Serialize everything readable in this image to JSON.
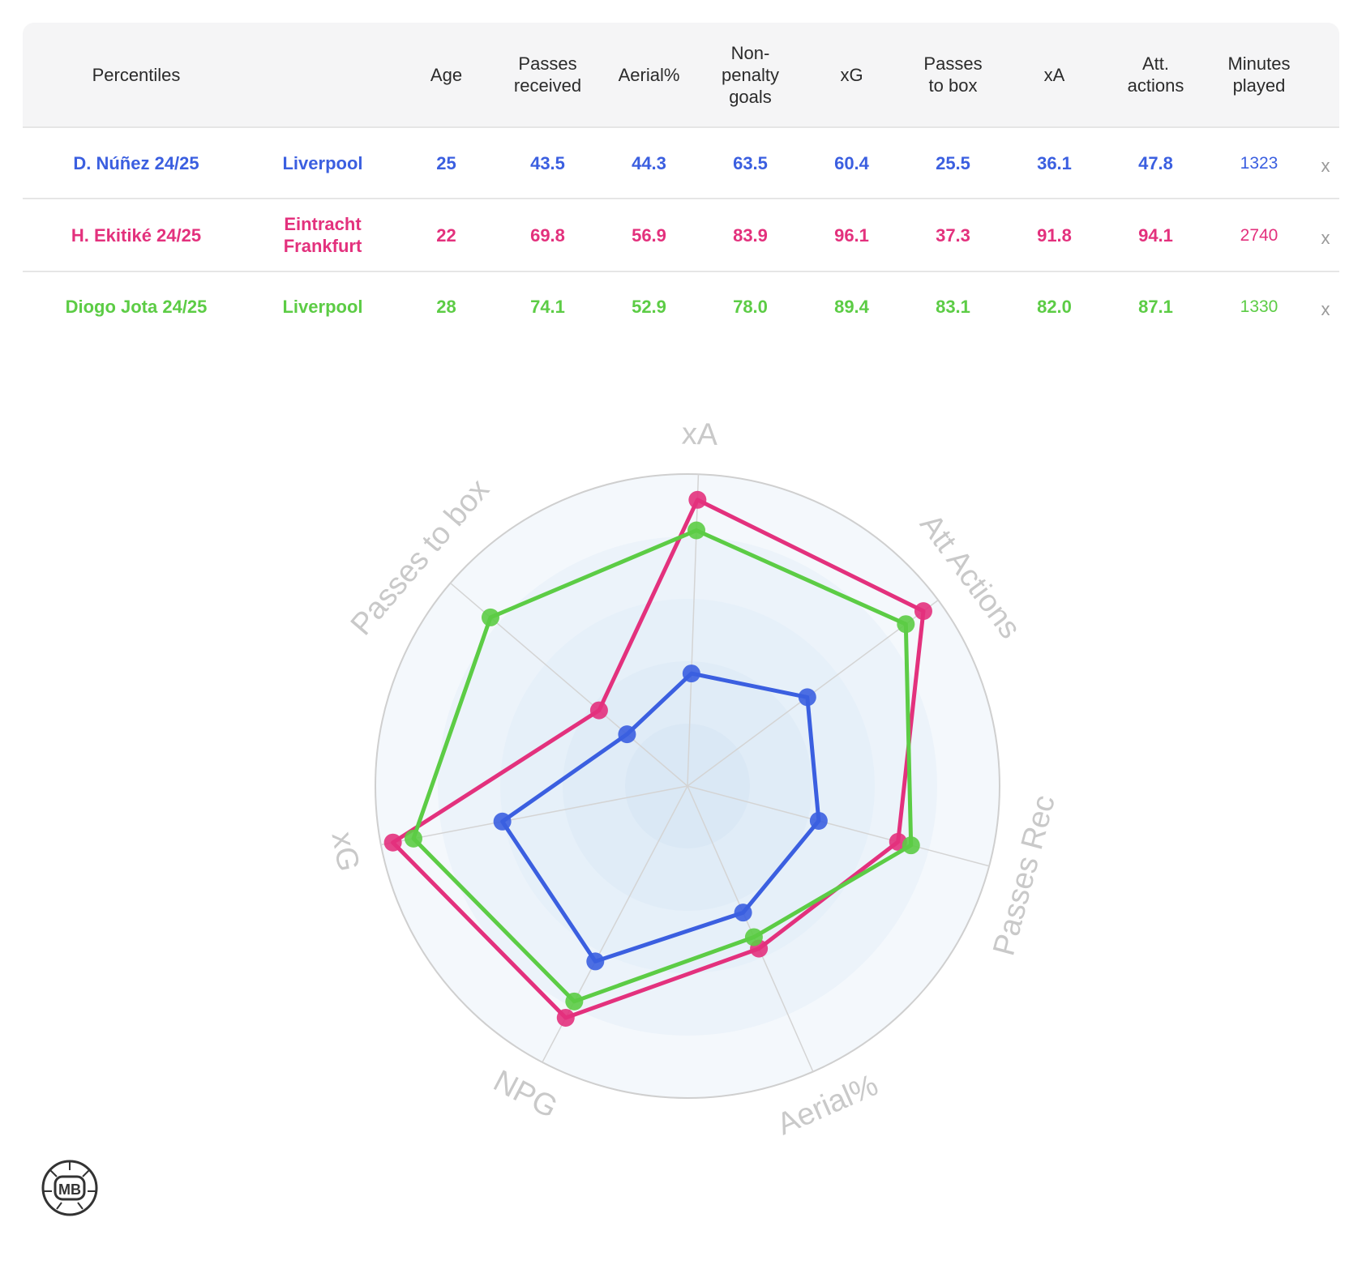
{
  "table": {
    "headers": [
      "Percentiles",
      "",
      "Age",
      "Passes received",
      "Aerial%",
      "Non-penalty goals",
      "xG",
      "Passes to box",
      "xA",
      "Att. actions",
      "Minutes played"
    ],
    "header_lines": {
      "passes_received": [
        "Passes",
        "received"
      ],
      "non_penalty_goals": [
        "Non-",
        "penalty",
        "goals"
      ],
      "passes_to_box": [
        "Passes",
        "to box"
      ],
      "att_actions": [
        "Att.",
        "actions"
      ],
      "minutes_played": [
        "Minutes",
        "played"
      ]
    },
    "rows": [
      {
        "player": "D. Núñez 24/25",
        "team_lines": [
          "Liverpool"
        ],
        "age": "25",
        "passes_received": "43.5",
        "aerial": "44.3",
        "npg": "63.5",
        "xg": "60.4",
        "passes_to_box": "25.5",
        "xa": "36.1",
        "att_actions": "47.8",
        "minutes": "1323",
        "remove": "x",
        "color": "#3b5fe0"
      },
      {
        "player": "H. Ekitiké 24/25",
        "team_lines": [
          "Eintracht",
          "Frankfurt"
        ],
        "age": "22",
        "passes_received": "69.8",
        "aerial": "56.9",
        "npg": "83.9",
        "xg": "96.1",
        "passes_to_box": "37.3",
        "xa": "91.8",
        "att_actions": "94.1",
        "minutes": "2740",
        "remove": "x",
        "color": "#e3317d"
      },
      {
        "player": "Diogo Jota 24/25",
        "team_lines": [
          "Liverpool"
        ],
        "age": "28",
        "passes_received": "74.1",
        "aerial": "52.9",
        "npg": "78.0",
        "xg": "89.4",
        "passes_to_box": "83.1",
        "xa": "82.0",
        "att_actions": "87.1",
        "minutes": "1330",
        "remove": "x",
        "color": "#5ccc45"
      }
    ]
  },
  "chart_data": {
    "type": "radar",
    "axes": [
      "xA",
      "Att Actions",
      "Passes Rec",
      "Aerial%",
      "NPG",
      "xG",
      "Passes to box"
    ],
    "range": [
      0,
      100
    ],
    "series": [
      {
        "name": "D. Núñez 24/25",
        "color": "#3b5fe0",
        "values": [
          36.1,
          47.8,
          43.5,
          44.3,
          63.5,
          60.4,
          25.5
        ]
      },
      {
        "name": "H. Ekitiké 24/25",
        "color": "#e3317d",
        "values": [
          91.8,
          94.1,
          69.8,
          56.9,
          83.9,
          96.1,
          37.3
        ]
      },
      {
        "name": "Diogo Jota 24/25",
        "color": "#5ccc45",
        "values": [
          82.0,
          87.1,
          74.1,
          52.9,
          78.0,
          89.4,
          83.1
        ]
      }
    ]
  },
  "logo": {
    "text": "MB"
  }
}
